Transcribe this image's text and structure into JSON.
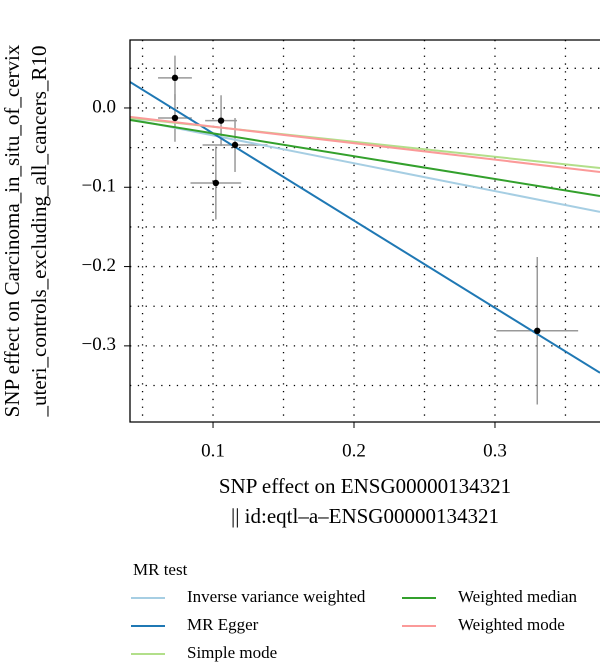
{
  "chart_data": {
    "type": "scatter",
    "x_label": [
      "SNP effect on ENSG00000134321",
      "|| id:eqtl–a–ENSG00000134321"
    ],
    "y_label": [
      "SNP effect on Carcinoma_in_situ_of_cervix",
      "_uteri_controls_excluding_all_cancers_R10"
    ],
    "xlim": [
      0.0411,
      0.3745
    ],
    "ylim": [
      -0.396,
      0.0857
    ],
    "xticks": [
      0.1,
      0.2,
      0.3
    ],
    "yticks": [
      {
        "value": 0,
        "label": "0.0"
      },
      {
        "value": -0.1,
        "label": "−0.1"
      },
      {
        "value": -0.2,
        "label": "−0.2"
      },
      {
        "value": -0.3,
        "label": "−0.3"
      }
    ],
    "xminorticks": [
      0.05,
      0.15,
      0.25,
      0.35
    ],
    "yminorticks": [
      0.05,
      -0.05,
      -0.15,
      -0.25,
      -0.35
    ],
    "grid": true,
    "points": {
      "color": "#000000",
      "err_color": "#999999",
      "x": [
        0.073,
        0.073,
        0.1057,
        0.102,
        0.1156,
        0.33
      ],
      "values": [
        0.038,
        -0.0126,
        -0.016,
        -0.0946,
        -0.0467,
        -0.281
      ],
      "x_err": [
        0.012,
        0.012,
        0.0113,
        0.018,
        0.023,
        0.029
      ],
      "y_err": [
        0.028,
        0.03,
        0.032,
        0.046,
        0.034,
        0.093
      ]
    },
    "legend_title": "MR test",
    "series": [
      {
        "name": "Inverse variance weighted",
        "color": "#a6cee3",
        "x": [
          0.0411,
          0.3745
        ],
        "values": [
          -0.0139,
          -0.131
        ]
      },
      {
        "name": "MR Egger",
        "color": "#1f78b4",
        "x": [
          0.0411,
          0.3745
        ],
        "values": [
          0.0328,
          -0.334
        ]
      },
      {
        "name": "Simple mode",
        "color": "#b2df8a",
        "x": [
          0.0411,
          0.3745
        ],
        "values": [
          -0.0126,
          -0.0757
        ]
      },
      {
        "name": "Weighted median",
        "color": "#33a02c",
        "x": [
          0.0411,
          0.3745
        ],
        "values": [
          -0.0151,
          -0.111
        ]
      },
      {
        "name": "Weighted mode",
        "color": "#fb9a99",
        "x": [
          0.0411,
          0.3745
        ],
        "values": [
          -0.0113,
          -0.0807
        ]
      }
    ]
  }
}
